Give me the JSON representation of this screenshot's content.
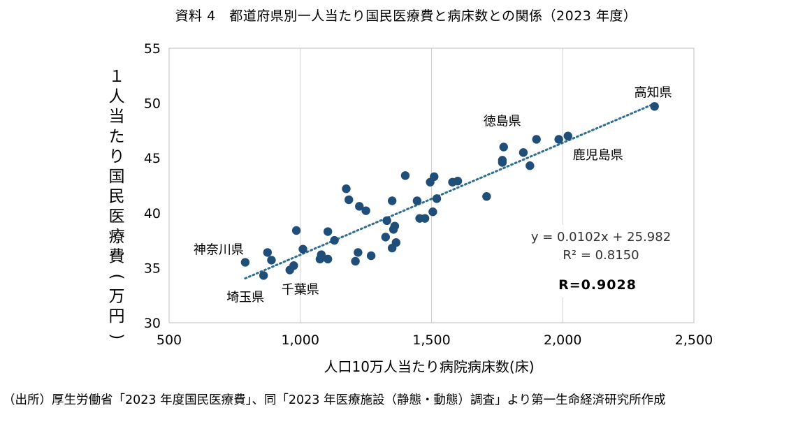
{
  "title": "資料 4　都道府県別一人当たり国民医療費と病床数との関係（2023 年度）",
  "source": "（出所）厚生労働省「2023 年度国民医療費」、同「2023 年医療施設（静態・動態）調査」より第一生命経済研究所作成",
  "chart_data": {
    "type": "scatter",
    "xlabel": "人口10万人当たり病院病床数(床)",
    "ylabel": "１人当たり国民医療費(万円)",
    "xlim": [
      500,
      2500
    ],
    "ylim": [
      30,
      55
    ],
    "x_ticks": [
      500,
      1000,
      1500,
      2000,
      2500
    ],
    "x_tick_labels": [
      "500",
      "1,000",
      "1,500",
      "2,000",
      "2,500"
    ],
    "y_ticks": [
      30,
      35,
      40,
      45,
      50,
      55
    ],
    "y_tick_labels": [
      "30",
      "35",
      "40",
      "45",
      "50",
      "55"
    ],
    "grid": "vertical",
    "marker_color": "#1f4e79",
    "trendline_color": "#2e6e8e",
    "trendline": {
      "slope": 0.0102,
      "intercept": 25.982,
      "x_range": [
        790,
        2350
      ]
    },
    "equation_text": "y = 0.0102x + 25.982",
    "r2_text": "R² = 0.8150",
    "r_text": "R=0.9028",
    "points": [
      [
        790,
        35.5
      ],
      [
        860,
        34.3
      ],
      [
        875,
        36.4
      ],
      [
        890,
        35.7
      ],
      [
        960,
        34.8
      ],
      [
        975,
        35.2
      ],
      [
        985,
        38.4
      ],
      [
        1010,
        36.7
      ],
      [
        1075,
        35.8
      ],
      [
        1080,
        36.2
      ],
      [
        1105,
        35.8
      ],
      [
        1105,
        38.3
      ],
      [
        1130,
        37.5
      ],
      [
        1175,
        42.2
      ],
      [
        1185,
        41.2
      ],
      [
        1210,
        35.6
      ],
      [
        1220,
        36.4
      ],
      [
        1225,
        40.6
      ],
      [
        1250,
        40.2
      ],
      [
        1270,
        36.1
      ],
      [
        1325,
        37.8
      ],
      [
        1330,
        39.3
      ],
      [
        1350,
        41.1
      ],
      [
        1350,
        36.8
      ],
      [
        1355,
        38.5
      ],
      [
        1360,
        38.8
      ],
      [
        1365,
        37.3
      ],
      [
        1400,
        43.4
      ],
      [
        1445,
        41.1
      ],
      [
        1455,
        39.5
      ],
      [
        1475,
        39.5
      ],
      [
        1495,
        42.8
      ],
      [
        1505,
        40.1
      ],
      [
        1510,
        43.3
      ],
      [
        1520,
        41.3
      ],
      [
        1580,
        42.8
      ],
      [
        1600,
        42.9
      ],
      [
        1710,
        41.5
      ],
      [
        1770,
        44.8
      ],
      [
        1770,
        44.6
      ],
      [
        1775,
        46.0
      ],
      [
        1850,
        45.5
      ],
      [
        1875,
        44.3
      ],
      [
        1900,
        46.7
      ],
      [
        1985,
        46.7
      ],
      [
        2020,
        47.0
      ],
      [
        2350,
        49.7
      ]
    ],
    "annotations": [
      {
        "text": "高知県",
        "x": 2350,
        "y": 49.7
      },
      {
        "text": "徳島県",
        "x": 1900,
        "y": 46.7
      },
      {
        "text": "鹿児島県",
        "x": 2020,
        "y": 47.0
      },
      {
        "text": "神奈川県",
        "x": 790,
        "y": 35.5
      },
      {
        "text": "埼玉県",
        "x": 860,
        "y": 34.3
      },
      {
        "text": "千葉県",
        "x": 960,
        "y": 34.8
      }
    ]
  }
}
